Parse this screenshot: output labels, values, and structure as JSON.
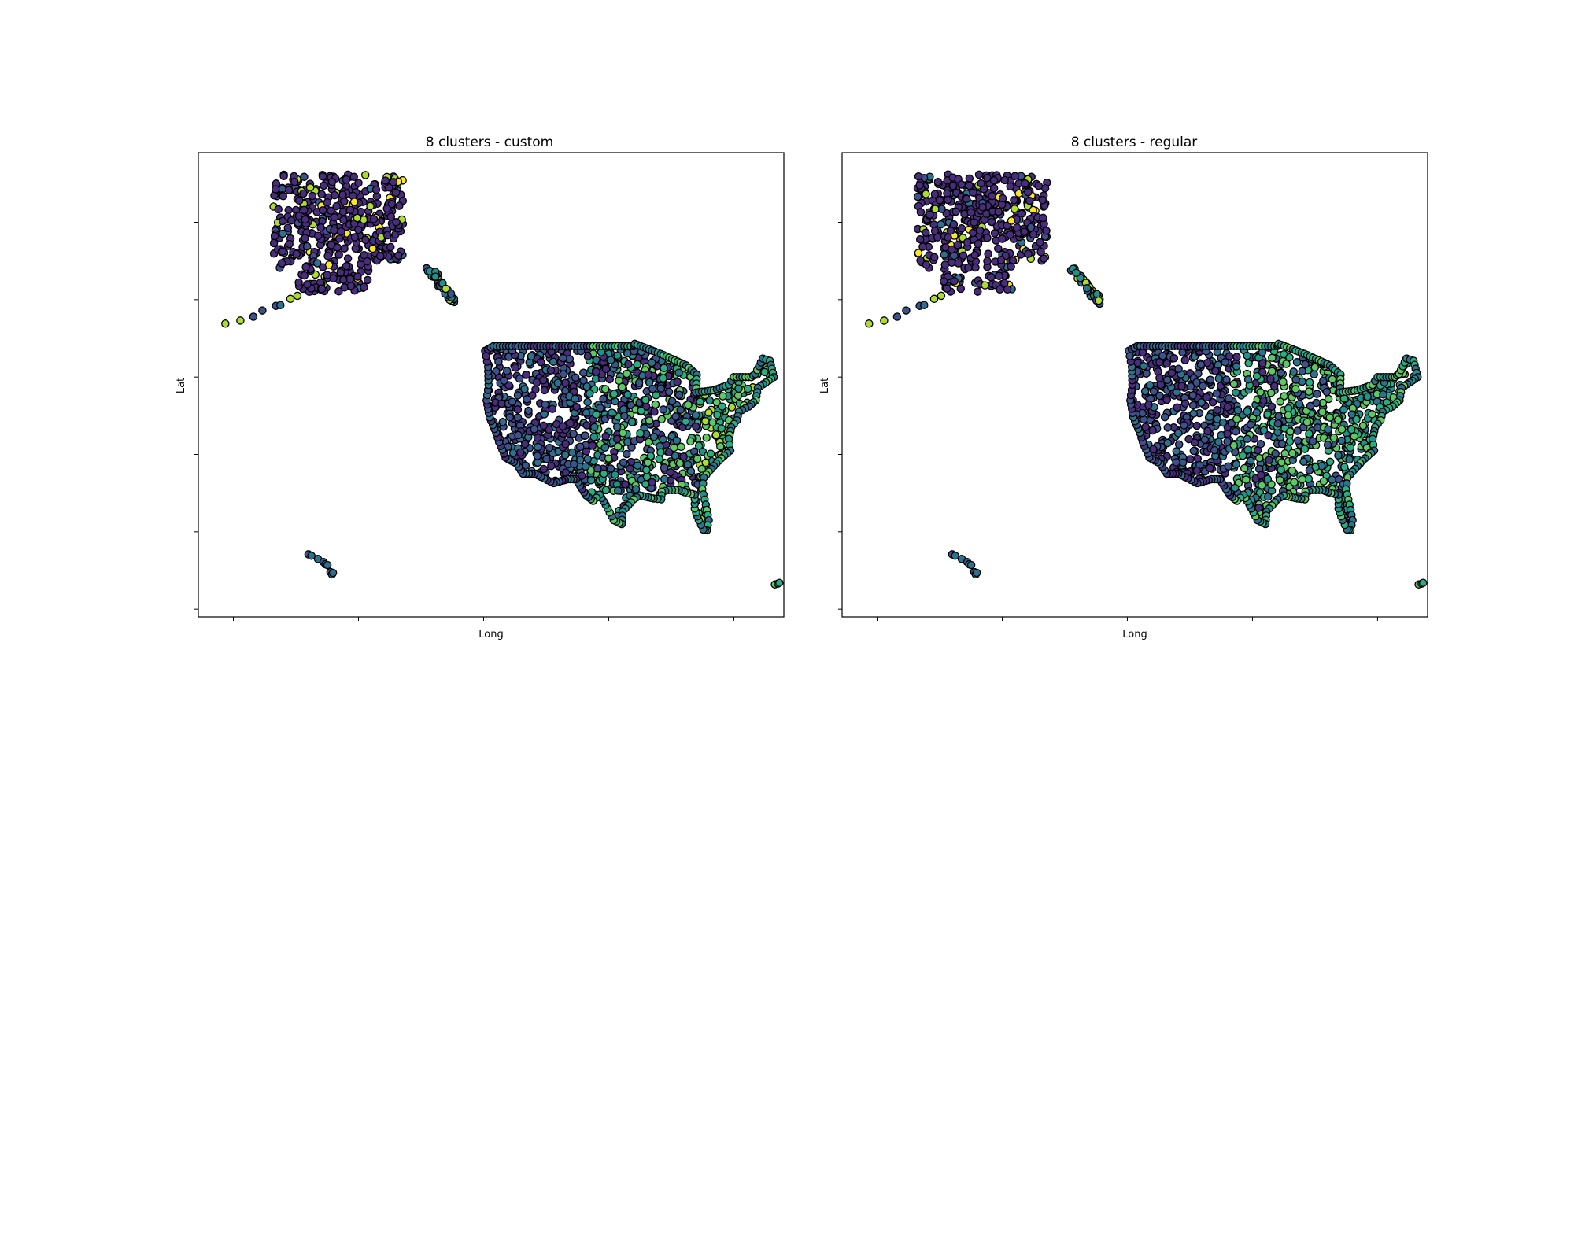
{
  "chart_data": [
    {
      "type": "scatter",
      "title": "8 clusters - custom",
      "xlabel": "Long",
      "ylabel": "Lat",
      "tick_labels_visible": false,
      "xlim": [
        -182,
        -65
      ],
      "ylim": [
        14,
        74
      ],
      "x_ticks": [
        -175,
        -150,
        -125,
        -100,
        -75
      ],
      "y_ticks": [
        15,
        25,
        35,
        45,
        55,
        65
      ],
      "marker_edge_color": "#000000",
      "cluster_colors": [
        "#472d7b",
        "#3b528b",
        "#2c728e",
        "#21918c",
        "#28ae80",
        "#5ec962",
        "#addc30",
        "#fde725"
      ],
      "regions": [
        {
          "name": "contiguous-us",
          "lon": [
            -125,
            -67
          ],
          "lat": [
            24.5,
            49
          ]
        },
        {
          "name": "alaska",
          "lon": [
            -169,
            -140
          ],
          "lat": [
            54.5,
            71.5
          ]
        },
        {
          "name": "southeast-alaska",
          "lon": [
            -136,
            -130
          ],
          "lat": [
            54.5,
            59.5
          ]
        },
        {
          "name": "aleutians",
          "lon": [
            -176,
            -158
          ],
          "lat": [
            51.5,
            56
          ]
        },
        {
          "name": "hawaii",
          "lon": [
            -160,
            -154.8
          ],
          "lat": [
            18.9,
            22.2
          ]
        },
        {
          "name": "puerto-rico",
          "lon": [
            -67.2,
            -65.5
          ],
          "lat": [
            17.9,
            18.5
          ]
        }
      ]
    },
    {
      "type": "scatter",
      "title": "8 clusters - regular",
      "xlabel": "Long",
      "ylabel": "Lat",
      "tick_labels_visible": false,
      "xlim": [
        -182,
        -65
      ],
      "ylim": [
        14,
        74
      ],
      "x_ticks": [
        -175,
        -150,
        -125,
        -100,
        -75
      ],
      "y_ticks": [
        15,
        25,
        35,
        45,
        55,
        65
      ],
      "marker_edge_color": "#000000",
      "cluster_colors": [
        "#472d7b",
        "#3b528b",
        "#2c728e",
        "#21918c",
        "#28ae80",
        "#5ec962",
        "#addc30",
        "#fde725"
      ],
      "regions": [
        {
          "name": "contiguous-us",
          "lon": [
            -125,
            -67
          ],
          "lat": [
            24.5,
            49
          ]
        },
        {
          "name": "alaska",
          "lon": [
            -169,
            -140
          ],
          "lat": [
            54.5,
            71.5
          ]
        },
        {
          "name": "southeast-alaska",
          "lon": [
            -136,
            -130
          ],
          "lat": [
            54.5,
            59.5
          ]
        },
        {
          "name": "aleutians",
          "lon": [
            -176,
            -158
          ],
          "lat": [
            51.5,
            56
          ]
        },
        {
          "name": "hawaii",
          "lon": [
            -160,
            -154.8
          ],
          "lat": [
            18.9,
            22.2
          ]
        },
        {
          "name": "puerto-rico",
          "lon": [
            -67.2,
            -65.5
          ],
          "lat": [
            17.9,
            18.5
          ]
        }
      ]
    }
  ]
}
